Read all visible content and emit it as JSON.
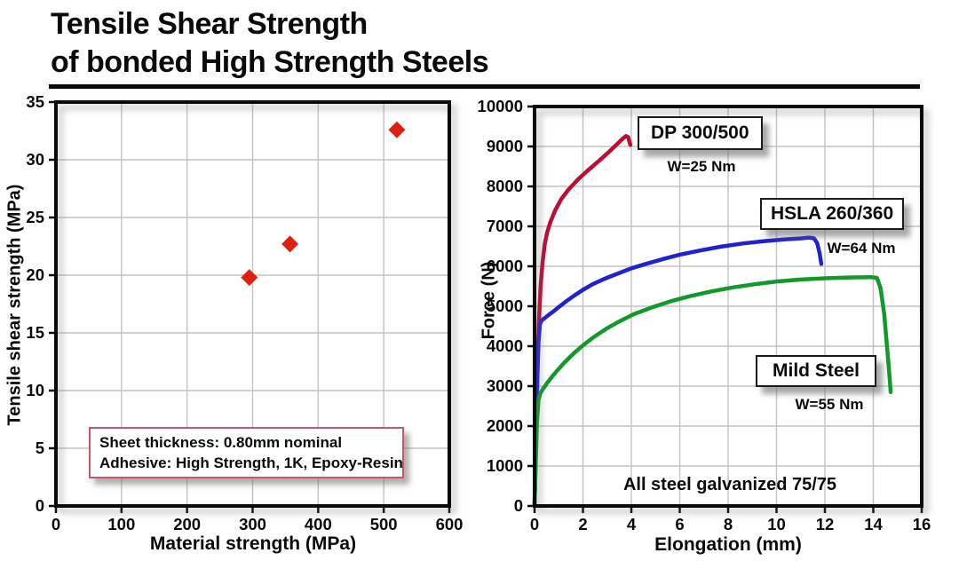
{
  "title": {
    "line1": "Tensile Shear Strength",
    "line2": "of bonded High Strength Steels"
  },
  "colors": {
    "frame": "#0a0a0a",
    "grid": "#c3c3c3",
    "dp_curve": "#bb0d35",
    "hsla_curve": "#2222cc",
    "mild_curve": "#13992b",
    "scatter_marker": "#dd2010",
    "note_box_border": "#c4596b"
  },
  "chart_data": [
    {
      "type": "scatter",
      "xlabel": "Material strength (MPa)",
      "ylabel": "Tensile shear strength (MPa)",
      "xlim": [
        0,
        600
      ],
      "ylim": [
        0,
        35
      ],
      "xticks": [
        0,
        100,
        200,
        300,
        400,
        500,
        600
      ],
      "yticks": [
        0,
        5,
        10,
        15,
        20,
        25,
        30,
        35
      ],
      "grid": true,
      "marker": "diamond",
      "marker_color": "#dd2010",
      "points": [
        [
          295,
          19.8
        ],
        [
          357,
          22.7
        ],
        [
          520,
          32.6
        ]
      ],
      "annotation": {
        "line1": "Sheet thickness: 0.80mm nominal",
        "line2": "Adhesive: High Strength, 1K, Epoxy-Resin"
      }
    },
    {
      "type": "line",
      "xlabel": "Elongation (mm)",
      "ylabel": "Force (N)",
      "xlim": [
        0,
        16
      ],
      "ylim": [
        0,
        10000
      ],
      "xticks": [
        0,
        2,
        4,
        6,
        8,
        10,
        12,
        14,
        16
      ],
      "yticks": [
        0,
        1000,
        2000,
        3000,
        4000,
        5000,
        6000,
        7000,
        8000,
        9000,
        10000
      ],
      "grid": true,
      "annotation": "All steel galvanized 75/75",
      "series": [
        {
          "name": "DP 300/500",
          "note": "W=25 Nm",
          "color": "#bb0d35",
          "points": [
            [
              0,
              0
            ],
            [
              0.06,
              1600
            ],
            [
              0.12,
              3400
            ],
            [
              0.18,
              4600
            ],
            [
              0.25,
              5500
            ],
            [
              0.33,
              6100
            ],
            [
              0.42,
              6550
            ],
            [
              0.52,
              6850
            ],
            [
              0.65,
              7100
            ],
            [
              0.85,
              7400
            ],
            [
              1.1,
              7680
            ],
            [
              1.4,
              7920
            ],
            [
              1.8,
              8180
            ],
            [
              2.2,
              8400
            ],
            [
              2.7,
              8660
            ],
            [
              3.1,
              8880
            ],
            [
              3.45,
              9080
            ],
            [
              3.65,
              9200
            ],
            [
              3.78,
              9260
            ],
            [
              3.87,
              9230
            ],
            [
              3.92,
              9120
            ],
            [
              3.96,
              9040
            ]
          ]
        },
        {
          "name": "HSLA 260/360",
          "note": "W=64 Nm",
          "color": "#2222cc",
          "points": [
            [
              0,
              0
            ],
            [
              0.06,
              1600
            ],
            [
              0.11,
              3100
            ],
            [
              0.16,
              4100
            ],
            [
              0.22,
              4550
            ],
            [
              0.3,
              4650
            ],
            [
              0.45,
              4720
            ],
            [
              0.62,
              4800
            ],
            [
              0.8,
              4880
            ],
            [
              1.0,
              4980
            ],
            [
              1.3,
              5120
            ],
            [
              1.6,
              5250
            ],
            [
              2.0,
              5410
            ],
            [
              2.4,
              5550
            ],
            [
              2.9,
              5690
            ],
            [
              3.4,
              5810
            ],
            [
              4.0,
              5950
            ],
            [
              4.6,
              6060
            ],
            [
              5.3,
              6180
            ],
            [
              6.0,
              6290
            ],
            [
              6.8,
              6390
            ],
            [
              7.7,
              6490
            ],
            [
              8.6,
              6570
            ],
            [
              9.5,
              6630
            ],
            [
              10.3,
              6670
            ],
            [
              11.0,
              6700
            ],
            [
              11.35,
              6720
            ],
            [
              11.55,
              6700
            ],
            [
              11.68,
              6580
            ],
            [
              11.78,
              6330
            ],
            [
              11.85,
              6060
            ]
          ]
        },
        {
          "name": "Mild Steel",
          "note": "W=55 Nm",
          "color": "#13992b",
          "points": [
            [
              0,
              0
            ],
            [
              0.05,
              1100
            ],
            [
              0.1,
              2100
            ],
            [
              0.16,
              2650
            ],
            [
              0.24,
              2820
            ],
            [
              0.35,
              2930
            ],
            [
              0.5,
              3060
            ],
            [
              0.7,
              3220
            ],
            [
              0.95,
              3400
            ],
            [
              1.25,
              3600
            ],
            [
              1.6,
              3810
            ],
            [
              2.0,
              4020
            ],
            [
              2.45,
              4230
            ],
            [
              2.95,
              4430
            ],
            [
              3.5,
              4620
            ],
            [
              4.1,
              4800
            ],
            [
              4.8,
              4960
            ],
            [
              5.6,
              5120
            ],
            [
              6.4,
              5250
            ],
            [
              7.3,
              5370
            ],
            [
              8.2,
              5470
            ],
            [
              9.1,
              5550
            ],
            [
              10.0,
              5620
            ],
            [
              11.0,
              5670
            ],
            [
              12.0,
              5700
            ],
            [
              13.0,
              5720
            ],
            [
              13.9,
              5730
            ],
            [
              14.15,
              5710
            ],
            [
              14.3,
              5450
            ],
            [
              14.45,
              4800
            ],
            [
              14.55,
              4100
            ],
            [
              14.65,
              3400
            ],
            [
              14.72,
              2850
            ]
          ]
        }
      ]
    }
  ]
}
